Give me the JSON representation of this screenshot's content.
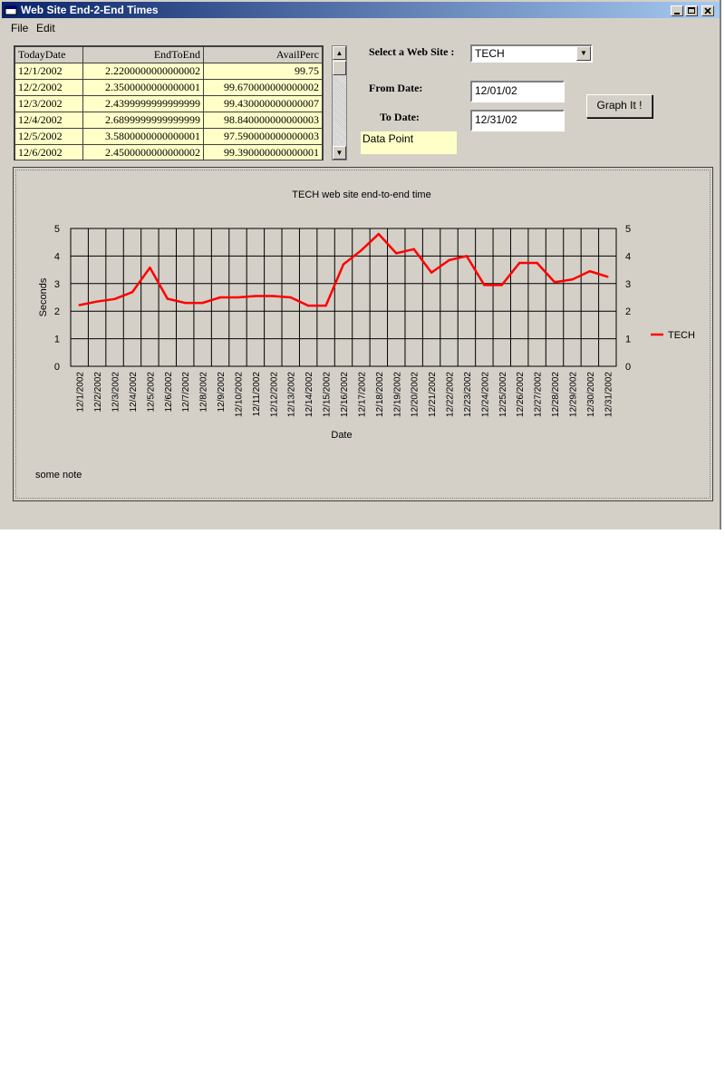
{
  "window": {
    "title": "Web Site End-2-End Times"
  },
  "menu": [
    "File",
    "Edit"
  ],
  "grid": {
    "columns": [
      "TodayDate",
      "EndToEnd",
      "AvailPerc"
    ],
    "rows": [
      [
        "12/1/2002",
        "2.2200000000000002",
        "99.75"
      ],
      [
        "12/2/2002",
        "2.3500000000000001",
        "99.670000000000002"
      ],
      [
        "12/3/2002",
        "2.4399999999999999",
        "99.430000000000007"
      ],
      [
        "12/4/2002",
        "2.6899999999999999",
        "98.840000000000003"
      ],
      [
        "12/5/2002",
        "3.5800000000000001",
        "97.590000000000003"
      ],
      [
        "12/6/2002",
        "2.4500000000000002",
        "99.390000000000001"
      ]
    ]
  },
  "form": {
    "site_label": "Select a Web Site :",
    "site_value": "TECH",
    "from_label": "From Date:",
    "from_value": "12/01/02",
    "to_label": "To Date:",
    "to_value": "12/31/02",
    "graph_button": "Graph It !",
    "data_point_label": "Data Point"
  },
  "note": "some note",
  "colors": {
    "series": "#ff0000",
    "titlebar": "#0a246a",
    "grid_cell": "#ffffc8"
  },
  "chart_data": {
    "type": "line",
    "title": "TECH web site end-to-end time",
    "xlabel": "Date",
    "ylabel": "Seconds",
    "ylim": [
      0,
      5
    ],
    "yticks": [
      0,
      1,
      2,
      3,
      4,
      5
    ],
    "legend": "right",
    "grid": true,
    "categories": [
      "12/1/2002",
      "12/2/2002",
      "12/3/2002",
      "12/4/2002",
      "12/5/2002",
      "12/6/2002",
      "12/7/2002",
      "12/8/2002",
      "12/9/2002",
      "12/10/2002",
      "12/11/2002",
      "12/12/2002",
      "12/13/2002",
      "12/14/2002",
      "12/15/2002",
      "12/16/2002",
      "12/17/2002",
      "12/18/2002",
      "12/19/2002",
      "12/20/2002",
      "12/21/2002",
      "12/22/2002",
      "12/23/2002",
      "12/24/2002",
      "12/25/2002",
      "12/26/2002",
      "12/27/2002",
      "12/28/2002",
      "12/29/2002",
      "12/30/2002",
      "12/31/2002"
    ],
    "series": [
      {
        "name": "TECH",
        "values": [
          2.22,
          2.35,
          2.44,
          2.69,
          3.58,
          2.45,
          2.3,
          2.3,
          2.5,
          2.5,
          2.55,
          2.55,
          2.5,
          2.2,
          2.2,
          3.7,
          4.2,
          4.8,
          4.1,
          4.25,
          3.4,
          3.85,
          4.0,
          2.95,
          2.95,
          3.75,
          3.75,
          3.05,
          3.15,
          3.45,
          3.25
        ]
      }
    ]
  }
}
